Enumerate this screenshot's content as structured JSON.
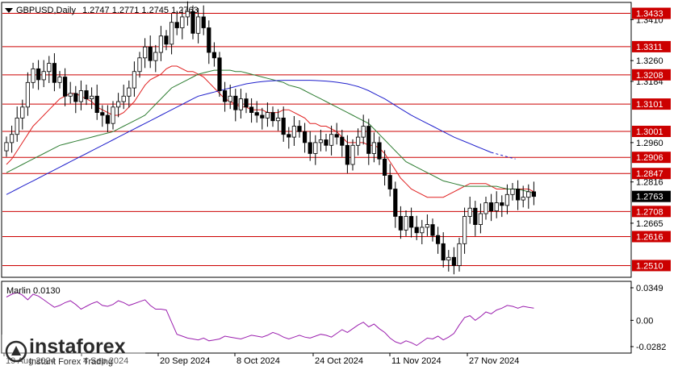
{
  "header": {
    "symbol_label": "GBPUSD,Daily",
    "ohlc_label": "1.2747 1.2771 1.2745 1.2763"
  },
  "indicator": {
    "label": "Marlin 0.0130",
    "ticks": [
      "0.0349",
      "0.00",
      "-0.0282"
    ]
  },
  "brand": {
    "name": "instaforex",
    "tagline": "Instant Forex Trading"
  },
  "colors": {
    "bull": "#ffffff",
    "bear": "#000000",
    "levels": "#cc0000",
    "ma_red": "#e02020",
    "ma_green": "#2e7d32",
    "ma_blue": "#1f1fcc",
    "oscillator": "#9b1fae"
  },
  "chart_data": {
    "type": "candlestick",
    "title": "GBPUSD,Daily",
    "ylim": [
      1.247,
      1.347
    ],
    "y_ticks": [
      "1.3410",
      "1.3260",
      "1.3184",
      "1.2960",
      "1.2816",
      "1.2665"
    ],
    "levels": [
      {
        "value": 1.3433,
        "label": "1.3433"
      },
      {
        "value": 1.3311,
        "label": "1.3311"
      },
      {
        "value": 1.3208,
        "label": "1.3208"
      },
      {
        "value": 1.3101,
        "label": "1.3101"
      },
      {
        "value": 1.3001,
        "label": "1.3001"
      },
      {
        "value": 1.2906,
        "label": "1.2906"
      },
      {
        "value": 1.2847,
        "label": "1.2847"
      },
      {
        "value": 1.2708,
        "label": "1.2708"
      },
      {
        "value": 1.2616,
        "label": "1.2616"
      },
      {
        "value": 1.251,
        "label": "1.2510"
      }
    ],
    "current_price": {
      "value": 1.2763,
      "label": "1.2763"
    },
    "x_labels": [
      "19 Aug 2024",
      "4 Sep 2024",
      "20 Sep 2024",
      "8 Oct 2024",
      "24 Oct 2024",
      "11 Nov 2024",
      "27 Nov 2024"
    ],
    "closes": [
      1.296,
      1.299,
      1.305,
      1.309,
      1.318,
      1.323,
      1.319,
      1.322,
      1.325,
      1.318,
      1.32,
      1.313,
      1.314,
      1.311,
      1.315,
      1.312,
      1.313,
      1.307,
      1.306,
      1.303,
      1.309,
      1.311,
      1.313,
      1.316,
      1.322,
      1.327,
      1.331,
      1.326,
      1.329,
      1.335,
      1.332,
      1.34,
      1.338,
      1.342,
      1.344,
      1.336,
      1.342,
      1.338,
      1.329,
      1.327,
      1.315,
      1.311,
      1.313,
      1.308,
      1.312,
      1.309,
      1.307,
      1.306,
      1.305,
      1.307,
      1.304,
      1.305,
      1.299,
      1.298,
      1.302,
      1.3,
      1.296,
      1.292,
      1.296,
      1.297,
      1.295,
      1.299,
      1.298,
      1.295,
      1.288,
      1.295,
      1.298,
      1.302,
      1.292,
      1.296,
      1.29,
      1.284,
      1.279,
      1.269,
      1.264,
      1.269,
      1.265,
      1.263,
      1.265,
      1.266,
      1.262,
      1.259,
      1.253,
      1.254,
      1.251,
      1.259,
      1.269,
      1.272,
      1.266,
      1.27,
      1.274,
      1.271,
      1.274,
      1.273,
      1.277,
      1.279,
      1.275,
      1.276,
      1.278,
      1.2763
    ],
    "series": [
      {
        "name": "",
        "kind": "moving-average",
        "color": "#e02020",
        "values": [
          1.288,
          1.29,
          1.293,
          1.296,
          1.299,
          1.302,
          1.304,
          1.306,
          1.308,
          1.31,
          1.312,
          1.313,
          1.314,
          1.314,
          1.313,
          1.312,
          1.311,
          1.309,
          1.308,
          1.307,
          1.306,
          1.306,
          1.307,
          1.309,
          1.311,
          1.314,
          1.317,
          1.319,
          1.32,
          1.321,
          1.323,
          1.324,
          1.324,
          1.323,
          1.322,
          1.322,
          1.321,
          1.32,
          1.318,
          1.316,
          1.314,
          1.312,
          1.311,
          1.31,
          1.309,
          1.309,
          1.308,
          1.308,
          1.308,
          1.307,
          1.307,
          1.307,
          1.308,
          1.308,
          1.307,
          1.306,
          1.305,
          1.303,
          1.303,
          1.302,
          1.302,
          1.301,
          1.3,
          1.298,
          1.296,
          1.296,
          1.296,
          1.296,
          1.295,
          1.295,
          1.294,
          1.292,
          1.289,
          1.286,
          1.283,
          1.281,
          1.279,
          1.278,
          1.277,
          1.276,
          1.276,
          1.276,
          1.276,
          1.277,
          1.278,
          1.279,
          1.28,
          1.281,
          1.281,
          1.281,
          1.281,
          1.28,
          1.279,
          1.279,
          1.279,
          1.279,
          1.279,
          1.279,
          1.279,
          1.278
        ]
      },
      {
        "name": "",
        "kind": "moving-average",
        "color": "#2e7d32",
        "values": [
          1.285,
          1.286,
          1.287,
          1.288,
          1.289,
          1.29,
          1.291,
          1.292,
          1.293,
          1.294,
          1.295,
          1.2955,
          1.296,
          1.2965,
          1.297,
          1.2975,
          1.298,
          1.2985,
          1.299,
          1.2995,
          1.3,
          1.301,
          1.302,
          1.303,
          1.304,
          1.305,
          1.306,
          1.308,
          1.31,
          1.312,
          1.314,
          1.316,
          1.317,
          1.318,
          1.319,
          1.32,
          1.321,
          1.3215,
          1.322,
          1.3225,
          1.3225,
          1.3225,
          1.3225,
          1.322,
          1.322,
          1.3215,
          1.321,
          1.3205,
          1.32,
          1.3195,
          1.319,
          1.3185,
          1.318,
          1.317,
          1.3165,
          1.316,
          1.315,
          1.314,
          1.313,
          1.312,
          1.311,
          1.31,
          1.309,
          1.308,
          1.307,
          1.306,
          1.305,
          1.304,
          1.303,
          1.301,
          1.299,
          1.297,
          1.295,
          1.293,
          1.291,
          1.289,
          1.288,
          1.287,
          1.286,
          1.285,
          1.284,
          1.283,
          1.282,
          1.2815,
          1.281,
          1.2805,
          1.28,
          1.28,
          1.28,
          1.28,
          1.28,
          1.28,
          1.28,
          1.2795,
          1.279,
          1.279,
          1.279,
          1.2785,
          1.278,
          1.2775
        ]
      },
      {
        "name": "",
        "kind": "moving-average",
        "color": "#1f1fcc",
        "values": [
          1.277,
          1.278,
          1.279,
          1.28,
          1.281,
          1.282,
          1.283,
          1.284,
          1.285,
          1.286,
          1.287,
          1.288,
          1.289,
          1.29,
          1.291,
          1.292,
          1.293,
          1.294,
          1.295,
          1.296,
          1.297,
          1.298,
          1.299,
          1.3,
          1.301,
          1.302,
          1.303,
          1.304,
          1.305,
          1.306,
          1.307,
          1.308,
          1.309,
          1.31,
          1.311,
          1.312,
          1.313,
          1.3135,
          1.314,
          1.3145,
          1.315,
          1.3155,
          1.316,
          1.3165,
          1.317,
          1.3175,
          1.3178,
          1.3181,
          1.3183,
          1.3185,
          1.3186,
          1.3187,
          1.3188,
          1.3188,
          1.3188,
          1.3188,
          1.3188,
          1.3188,
          1.3187,
          1.3186,
          1.3185,
          1.3183,
          1.3181,
          1.3178,
          1.3175,
          1.317,
          1.3165,
          1.3158,
          1.315,
          1.314,
          1.313,
          1.312,
          1.3108,
          1.3096,
          1.3084,
          1.3072,
          1.306,
          1.305,
          1.304,
          1.303,
          1.302,
          1.301,
          1.3,
          1.299,
          1.298,
          1.2972,
          1.2964,
          1.2956,
          1.2948,
          1.294,
          1.2932,
          1.2924
        ]
      },
      {
        "name": "Marlin",
        "kind": "oscillator",
        "color": "#9b1fae",
        "ylim": [
          -0.0282,
          0.0349
        ],
        "values": [
          0.025,
          0.028,
          0.03,
          0.027,
          0.022,
          0.028,
          0.026,
          0.022,
          0.018,
          0.014,
          0.016,
          0.019,
          0.021,
          0.017,
          0.012,
          0.015,
          0.018,
          0.02,
          0.016,
          0.015,
          0.017,
          0.021,
          0.019,
          0.016,
          0.018,
          0.02,
          0.022,
          0.016,
          0.012,
          0.012,
          0.011,
          -0.002,
          -0.015,
          -0.017,
          -0.019,
          -0.02,
          -0.021,
          -0.019,
          -0.022,
          -0.021,
          -0.02,
          -0.017,
          -0.018,
          -0.019,
          -0.02,
          -0.018,
          -0.016,
          -0.017,
          -0.018,
          -0.016,
          -0.013,
          -0.015,
          -0.018,
          -0.02,
          -0.018,
          -0.016,
          -0.018,
          -0.019,
          -0.017,
          -0.015,
          -0.016,
          -0.018,
          -0.014,
          -0.01,
          -0.013,
          -0.009,
          -0.005,
          -0.002,
          -0.007,
          -0.004,
          -0.009,
          -0.013,
          -0.019,
          -0.023,
          -0.025,
          -0.022,
          -0.024,
          -0.027,
          -0.023,
          -0.019,
          -0.02,
          -0.017,
          -0.021,
          -0.018,
          -0.014,
          -0.005,
          0.003,
          0.005,
          0.0,
          0.004,
          0.009,
          0.007,
          0.011,
          0.013,
          0.016,
          0.015,
          0.013,
          0.015,
          0.014,
          0.013
        ]
      }
    ]
  }
}
